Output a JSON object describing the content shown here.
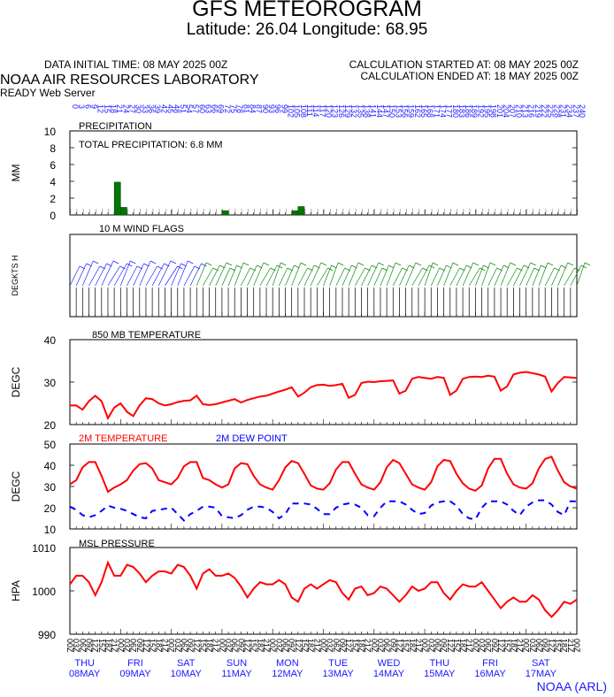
{
  "header": {
    "title": "GFS METEOROGRAM",
    "subtitle": "Latitude: 26.04 Longitude:  68.95",
    "initial_time": "DATA INITIAL TIME: 08 MAY 2025 00Z",
    "calc_started": "CALCULATION STARTED AT: 08 MAY 2025 00Z",
    "calc_ended": "CALCULATION ENDED AT: 18 MAY 2025 00Z",
    "lab": "NOAA AIR RESOURCES LABORATORY",
    "server": "READY Web Server"
  },
  "footer": "NOAA (ARL)",
  "colors": {
    "temp": "#ff0000",
    "dewpoint": "#0000ff",
    "precip": "#007700",
    "wind_early": "#2222ff",
    "wind_late": "#118811",
    "axis_blue": "#1a1aff"
  },
  "chart_data": [
    {
      "type": "bar",
      "title": "PRECIPITATION",
      "annotation": "TOTAL PRECIPITATION:   6.8 MM",
      "ylabel": "MM",
      "ylim": [
        0,
        10
      ],
      "yticks": [
        0,
        2,
        4,
        6,
        8,
        10
      ],
      "x_unit": "forecast hour",
      "x_hours": [
        21,
        24,
        72,
        105,
        108
      ],
      "values": [
        3.9,
        0.9,
        0.5,
        0.5,
        1.0
      ]
    },
    {
      "type": "table",
      "title": "10 M  WIND FLAGS",
      "ylabel": "DEGKTS  H"
    },
    {
      "type": "line",
      "title": "850 MB  TEMPERATURE",
      "ylabel": "DEGC",
      "ylim": [
        20,
        40
      ],
      "yticks": [
        20,
        30,
        40
      ],
      "x_unit": "forecast hour (3-hourly, 0-240)",
      "series": [
        {
          "values": [
            24.5,
            24.5,
            23.5,
            25.5,
            26.8,
            25.5,
            21.5,
            24.0,
            25.0,
            23.0,
            22.0,
            24.5,
            26.2,
            26.0,
            25.0,
            24.5,
            24.8,
            25.3,
            25.6,
            25.7,
            26.8,
            24.8,
            24.6,
            24.8,
            25.2,
            25.6,
            26.0,
            25.2,
            25.8,
            26.2,
            26.6,
            26.8,
            27.3,
            27.8,
            28.2,
            28.8,
            26.6,
            27.5,
            28.8,
            29.3,
            29.4,
            29.1,
            29.3,
            29.6,
            26.3,
            27.0,
            29.8,
            30.1,
            30.0,
            30.2,
            30.3,
            30.4,
            27.3,
            28.0,
            30.8,
            31.2,
            31.0,
            30.8,
            31.2,
            31.0,
            27.0,
            28.0,
            30.8,
            31.2,
            31.3,
            31.2,
            31.5,
            31.3,
            28.0,
            29.0,
            31.8,
            32.2,
            32.4,
            32.1,
            31.8,
            31.3,
            27.8,
            29.8,
            31.2,
            31.1,
            31.0
          ]
        }
      ]
    },
    {
      "type": "line",
      "title": "",
      "ylabel": "DEGC",
      "ylim": [
        10,
        50
      ],
      "yticks": [
        10,
        20,
        30,
        40,
        50
      ],
      "legend": [
        "2M TEMPERATURE",
        "2M  DEW POINT"
      ],
      "x_unit": "forecast hour (3-hourly, 0-240)",
      "series": [
        {
          "name": "2M TEMPERATURE",
          "values": [
            31,
            33,
            39,
            41.5,
            41.5,
            35,
            27.5,
            29.5,
            31,
            33,
            37.5,
            40.5,
            41,
            38.5,
            33,
            32,
            31,
            34,
            39.5,
            41.5,
            41.5,
            34,
            33,
            31,
            29.5,
            31,
            38.5,
            41,
            40.5,
            35,
            31,
            29.5,
            28.5,
            33,
            39,
            42,
            41,
            36,
            30.5,
            29,
            28.5,
            31.5,
            38,
            41.5,
            41.5,
            36,
            31,
            29.5,
            28.5,
            32,
            39,
            42.5,
            41,
            36,
            31,
            29.5,
            28.5,
            32,
            39.5,
            42.5,
            42,
            36,
            31.5,
            29,
            28,
            30.5,
            38.5,
            43,
            43,
            36,
            31,
            29.5,
            29,
            31.5,
            38.5,
            43,
            44,
            37.5,
            32,
            30,
            29
          ]
        },
        {
          "name": "2M  DEW POINT",
          "values": [
            20.5,
            19,
            16.5,
            15.5,
            16.5,
            18.5,
            21,
            20,
            19.5,
            18.5,
            17,
            15.5,
            15,
            18.5,
            19,
            19.5,
            20,
            17,
            14,
            17,
            18.5,
            20.5,
            20.5,
            20,
            16,
            15.5,
            15,
            16.5,
            19,
            20.5,
            20.5,
            20,
            18,
            15,
            17,
            22,
            22,
            22,
            21.5,
            19.5,
            17,
            17,
            20,
            21.5,
            22,
            21.5,
            20,
            16.5,
            16,
            20,
            23,
            23,
            23,
            21.5,
            19,
            17,
            17.5,
            21,
            22.5,
            23,
            23,
            21,
            17,
            15,
            14.5,
            20,
            23,
            23,
            23,
            21.5,
            18.5,
            16.5,
            20.5,
            22.5,
            23.5,
            23.5,
            21.5,
            18,
            16.5,
            23,
            23
          ]
        }
      ]
    },
    {
      "type": "line",
      "title": "MSL PRESSURE",
      "ylabel": "HPA",
      "ylim": [
        990,
        1010
      ],
      "yticks": [
        990,
        1000,
        1010
      ],
      "x_unit": "forecast hour (3-hourly, 0-240)",
      "series": [
        {
          "values": [
            1001.5,
            1003.5,
            1003.5,
            1002,
            999,
            1002,
            1006.5,
            1003.5,
            1003.5,
            1006,
            1005.5,
            1004,
            1002,
            1003.5,
            1004.5,
            1004.5,
            1004,
            1006,
            1005.5,
            1003.5,
            1000.5,
            1004,
            1005,
            1003.5,
            1003.5,
            1004,
            1003,
            1001,
            998.5,
            1000.5,
            1002,
            1001.5,
            1001.5,
            1002.5,
            1001.5,
            998.5,
            997.5,
            1000.5,
            1001.5,
            1000.5,
            1001.5,
            1002.5,
            1002,
            999.5,
            998,
            1000.5,
            1001,
            999,
            999.5,
            1001,
            1000.5,
            999,
            997.5,
            999,
            1001,
            1000,
            1000.5,
            1002,
            1002,
            999.5,
            998,
            1000,
            1001.5,
            1001,
            1001,
            1002,
            1000,
            998,
            996,
            997.5,
            998.5,
            997.5,
            997.5,
            999,
            998,
            995.5,
            994,
            995.5,
            997.5,
            997,
            998
          ]
        }
      ]
    }
  ],
  "time_axis": {
    "top_hour_labels": [
      "0",
      "3",
      "6",
      "9",
      "12",
      "15",
      "18",
      "21",
      "24",
      "27",
      "30",
      "33",
      "36",
      "39",
      "42",
      "45",
      "48",
      "51",
      "54",
      "57",
      "60",
      "63",
      "66",
      "69",
      "72",
      "75",
      "78",
      "81",
      "84",
      "87",
      "90",
      "93",
      "96",
      "99",
      "102",
      "105",
      "108",
      "111",
      "114",
      "117",
      "120",
      "123",
      "126",
      "129",
      "132",
      "135",
      "138",
      "141",
      "144",
      "147",
      "150",
      "153",
      "156",
      "159",
      "162",
      "165",
      "168",
      "171",
      "174",
      "177",
      "180",
      "183",
      "186",
      "189",
      "192",
      "195",
      "198",
      "201",
      "204",
      "207",
      "210",
      "213",
      "216",
      "219",
      "222",
      "225",
      "228",
      "231",
      "234",
      "237",
      "240"
    ],
    "bottom_hour_labels": [
      "00Z",
      "03Z",
      "06Z",
      "09Z",
      "12Z",
      "15Z",
      "18Z",
      "21Z",
      "00Z",
      "03Z",
      "06Z",
      "09Z",
      "12Z",
      "15Z",
      "18Z",
      "21Z",
      "00Z",
      "03Z",
      "06Z",
      "09Z",
      "12Z",
      "15Z",
      "18Z",
      "21Z",
      "00Z",
      "03Z",
      "06Z",
      "09Z",
      "12Z",
      "15Z",
      "18Z",
      "21Z",
      "00Z",
      "03Z",
      "06Z",
      "09Z",
      "12Z",
      "15Z",
      "18Z",
      "21Z",
      "00Z",
      "03Z",
      "06Z",
      "09Z",
      "12Z",
      "15Z",
      "18Z",
      "21Z",
      "00Z",
      "03Z",
      "06Z",
      "09Z",
      "12Z",
      "15Z",
      "18Z",
      "21Z",
      "00Z",
      "03Z",
      "06Z",
      "09Z",
      "12Z",
      "15Z",
      "18Z",
      "21Z",
      "00Z",
      "03Z",
      "06Z",
      "09Z",
      "12Z",
      "15Z",
      "18Z",
      "21Z",
      "00Z",
      "03Z",
      "06Z",
      "09Z",
      "12Z",
      "15Z",
      "18Z",
      "21Z",
      "00Z"
    ],
    "days": [
      {
        "dow": "THU",
        "date": "08MAY"
      },
      {
        "dow": "FRI",
        "date": "09MAY"
      },
      {
        "dow": "SAT",
        "date": "10MAY"
      },
      {
        "dow": "SUN",
        "date": "11MAY"
      },
      {
        "dow": "MON",
        "date": "12MAY"
      },
      {
        "dow": "TUE",
        "date": "13MAY"
      },
      {
        "dow": "WED",
        "date": "14MAY"
      },
      {
        "dow": "THU",
        "date": "15MAY"
      },
      {
        "dow": "FRI",
        "date": "16MAY"
      },
      {
        "dow": "SAT",
        "date": "17MAY"
      }
    ]
  }
}
